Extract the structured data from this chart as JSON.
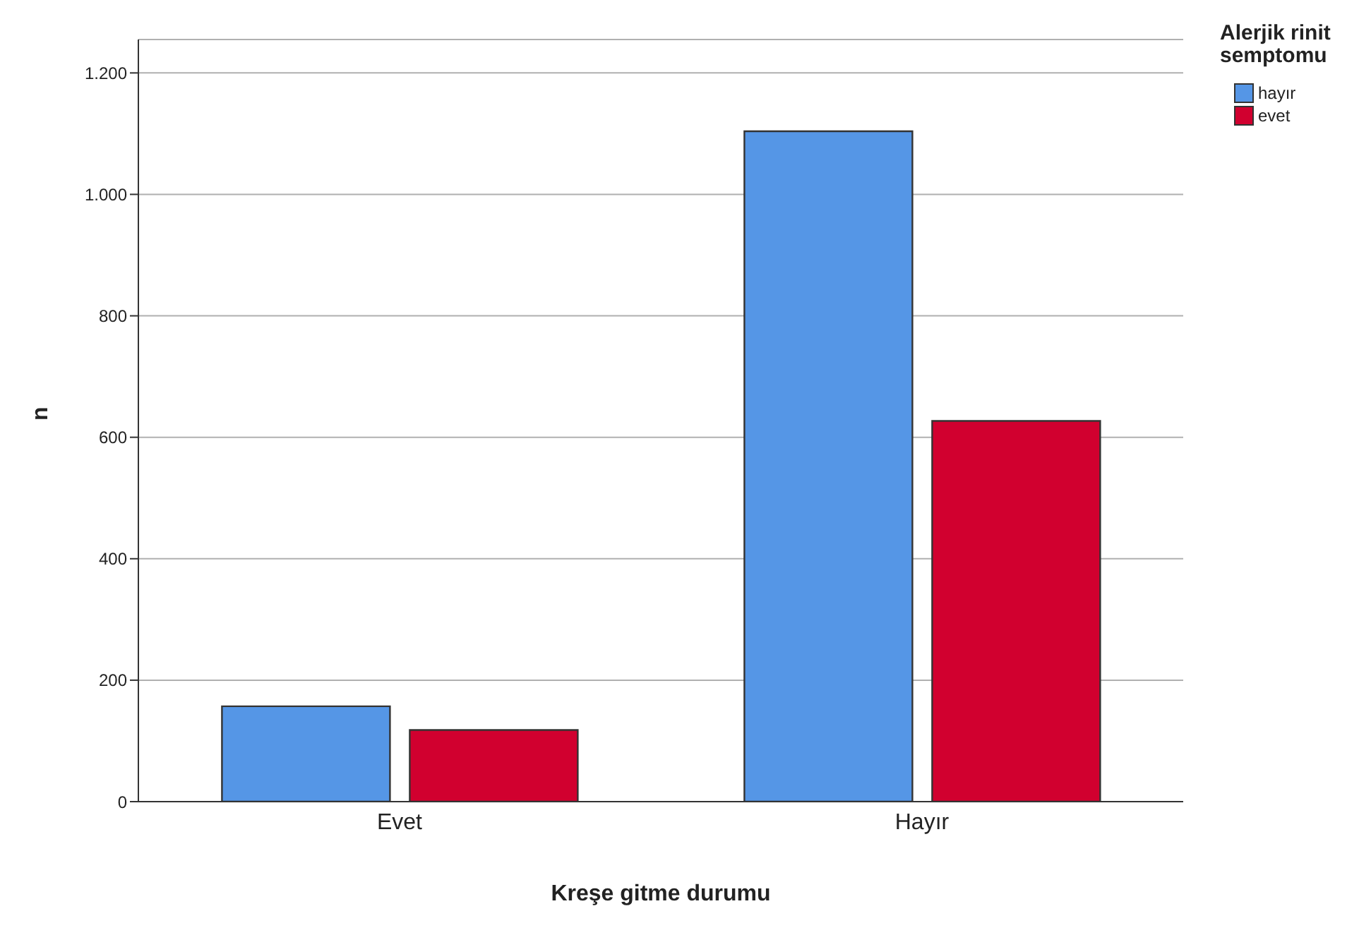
{
  "chart_data": {
    "type": "bar",
    "xlabel": "Kreşe gitme durumu",
    "ylabel": "n",
    "legend_title": "Alerjik rinit semptomu",
    "categories": [
      "Evet",
      "Hayır"
    ],
    "series": [
      {
        "name": "hayır",
        "color": "#5596e6",
        "values": [
          157,
          1104
        ]
      },
      {
        "name": "evet",
        "color": "#d1002f",
        "values": [
          118,
          627
        ]
      }
    ],
    "ylim": [
      0,
      1255
    ],
    "yticks": [
      0,
      200,
      400,
      600,
      800,
      {
        "value": 1000,
        "label": "1.000"
      },
      {
        "value": 1200,
        "label": "1.200"
      }
    ],
    "grid": "y",
    "legend": "top right"
  }
}
